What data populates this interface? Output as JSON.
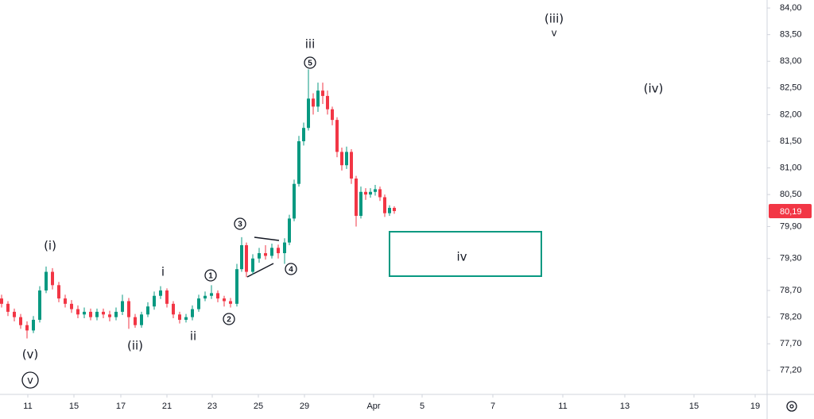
{
  "chart_data": {
    "type": "candlestick",
    "xlim": [
      0,
      965
    ],
    "ylim": [
      76.78,
      84.15
    ],
    "xticks": [
      {
        "value": 35,
        "label": "11"
      },
      {
        "value": 93,
        "label": "15"
      },
      {
        "value": 152,
        "label": "17"
      },
      {
        "value": 210,
        "label": "21"
      },
      {
        "value": 267,
        "label": "23"
      },
      {
        "value": 325,
        "label": "25"
      },
      {
        "value": 383,
        "label": "29"
      },
      {
        "value": 470,
        "label": "Apr"
      },
      {
        "value": 531,
        "label": "5"
      },
      {
        "value": 620,
        "label": "7"
      },
      {
        "value": 708,
        "label": "11"
      },
      {
        "value": 786,
        "label": "13"
      },
      {
        "value": 873,
        "label": "15"
      },
      {
        "value": 950,
        "label": "19"
      }
    ],
    "yticks": [
      {
        "value": 84,
        "label": "84,00"
      },
      {
        "value": 83.5,
        "label": "83,50"
      },
      {
        "value": 83,
        "label": "83,00"
      },
      {
        "value": 82.5,
        "label": "82,50"
      },
      {
        "value": 82,
        "label": "82,00"
      },
      {
        "value": 81.5,
        "label": "81,50"
      },
      {
        "value": 81,
        "label": "81,00"
      },
      {
        "value": 80.5,
        "label": "80,50"
      },
      {
        "value": 79.9,
        "label": "79,90"
      },
      {
        "value": 79.3,
        "label": "79,30"
      },
      {
        "value": 78.7,
        "label": "78,70"
      },
      {
        "value": 78.2,
        "label": "78,20"
      },
      {
        "value": 77.7,
        "label": "77,70"
      },
      {
        "value": 77.2,
        "label": "77,20"
      }
    ],
    "grid": false,
    "up_color": "#089981",
    "down_color": "#f23645",
    "last_price": {
      "value": 80.19,
      "label": "80,19"
    },
    "x": [
      2,
      10,
      18,
      26,
      34,
      42,
      50,
      58,
      66,
      74,
      82,
      90,
      98,
      106,
      114,
      122,
      130,
      138,
      146,
      154,
      162,
      170,
      178,
      186,
      194,
      202,
      210,
      218,
      226,
      234,
      242,
      250,
      258,
      266,
      274,
      282,
      290,
      298,
      304,
      310,
      318,
      326,
      334,
      342,
      350,
      358,
      364,
      370,
      376,
      382,
      388,
      394,
      400,
      406,
      412,
      418,
      424,
      430,
      436,
      442,
      448,
      454,
      460,
      466,
      472,
      478,
      484,
      490,
      496
    ],
    "open": [
      78.55,
      78.45,
      78.3,
      78.2,
      78.05,
      77.95,
      78.15,
      78.7,
      79.05,
      78.8,
      78.55,
      78.45,
      78.35,
      78.25,
      78.3,
      78.2,
      78.3,
      78.25,
      78.2,
      78.3,
      78.5,
      78.2,
      78.05,
      78.25,
      78.4,
      78.6,
      78.7,
      78.45,
      78.25,
      78.15,
      78.2,
      78.35,
      78.55,
      78.6,
      78.65,
      78.55,
      78.5,
      78.45,
      79.1,
      79.55,
      79.05,
      79.3,
      79.4,
      79.35,
      79.5,
      79.4,
      79.6,
      80.05,
      80.7,
      81.5,
      81.75,
      82.3,
      82.15,
      82.45,
      82.35,
      82.1,
      81.9,
      81.3,
      81.05,
      81.3,
      80.8,
      80.1,
      80.55,
      80.5,
      80.55,
      80.6,
      80.45,
      80.15,
      80.25
    ],
    "high": [
      78.62,
      78.5,
      78.36,
      78.26,
      78.12,
      78.22,
      78.78,
      79.15,
      79.12,
      78.86,
      78.62,
      78.52,
      78.42,
      78.38,
      78.36,
      78.36,
      78.36,
      78.32,
      78.38,
      78.62,
      78.56,
      78.26,
      78.3,
      78.48,
      78.68,
      78.78,
      78.74,
      78.5,
      78.3,
      78.26,
      78.42,
      78.62,
      78.68,
      78.8,
      78.7,
      78.6,
      78.56,
      79.2,
      79.7,
      79.6,
      79.38,
      79.5,
      79.55,
      79.58,
      79.56,
      79.68,
      80.12,
      80.78,
      81.6,
      81.85,
      82.85,
      82.4,
      82.6,
      82.6,
      82.45,
      82.15,
      81.95,
      81.38,
      81.4,
      81.35,
      80.85,
      80.65,
      80.62,
      80.62,
      80.68,
      80.65,
      80.5,
      80.3,
      80.28
    ],
    "low": [
      78.38,
      78.22,
      78.12,
      77.98,
      77.8,
      77.9,
      78.1,
      78.65,
      78.72,
      78.48,
      78.38,
      78.28,
      78.18,
      78.18,
      78.14,
      78.14,
      78.18,
      78.12,
      78.14,
      78.24,
      77.98,
      78.0,
      78.0,
      78.2,
      78.34,
      78.54,
      78.38,
      78.18,
      78.08,
      78.1,
      78.14,
      78.3,
      78.5,
      78.54,
      78.48,
      78.4,
      78.38,
      78.4,
      79.05,
      78.95,
      79.0,
      79.22,
      79.28,
      79.3,
      79.3,
      79.2,
      79.55,
      80.0,
      80.65,
      81.42,
      81.7,
      82.0,
      82.05,
      82.2,
      82.0,
      81.8,
      81.2,
      80.95,
      80.98,
      80.7,
      79.9,
      80.05,
      80.4,
      80.44,
      80.48,
      80.38,
      80.08,
      80.1,
      80.14
    ],
    "close": [
      78.45,
      78.3,
      78.2,
      78.05,
      77.95,
      78.15,
      78.7,
      79.05,
      78.8,
      78.55,
      78.45,
      78.35,
      78.25,
      78.3,
      78.2,
      78.3,
      78.25,
      78.2,
      78.3,
      78.5,
      78.2,
      78.05,
      78.25,
      78.4,
      78.6,
      78.7,
      78.45,
      78.25,
      78.15,
      78.2,
      78.35,
      78.55,
      78.6,
      78.65,
      78.55,
      78.5,
      78.45,
      79.1,
      79.55,
      79.05,
      79.3,
      79.4,
      79.35,
      79.5,
      79.4,
      79.6,
      80.05,
      80.7,
      81.5,
      81.75,
      82.3,
      82.15,
      82.45,
      82.35,
      82.1,
      81.9,
      81.3,
      81.05,
      81.3,
      80.8,
      80.1,
      80.55,
      80.5,
      80.55,
      80.6,
      80.45,
      80.15,
      80.25,
      80.19
    ],
    "annotations": [
      "(v)",
      "v",
      "(i)",
      "(ii)",
      "i",
      "ii",
      "1",
      "2",
      "3",
      "4",
      "5",
      "iii",
      "(iii)",
      "v",
      "(iv)",
      "iv"
    ]
  }
}
